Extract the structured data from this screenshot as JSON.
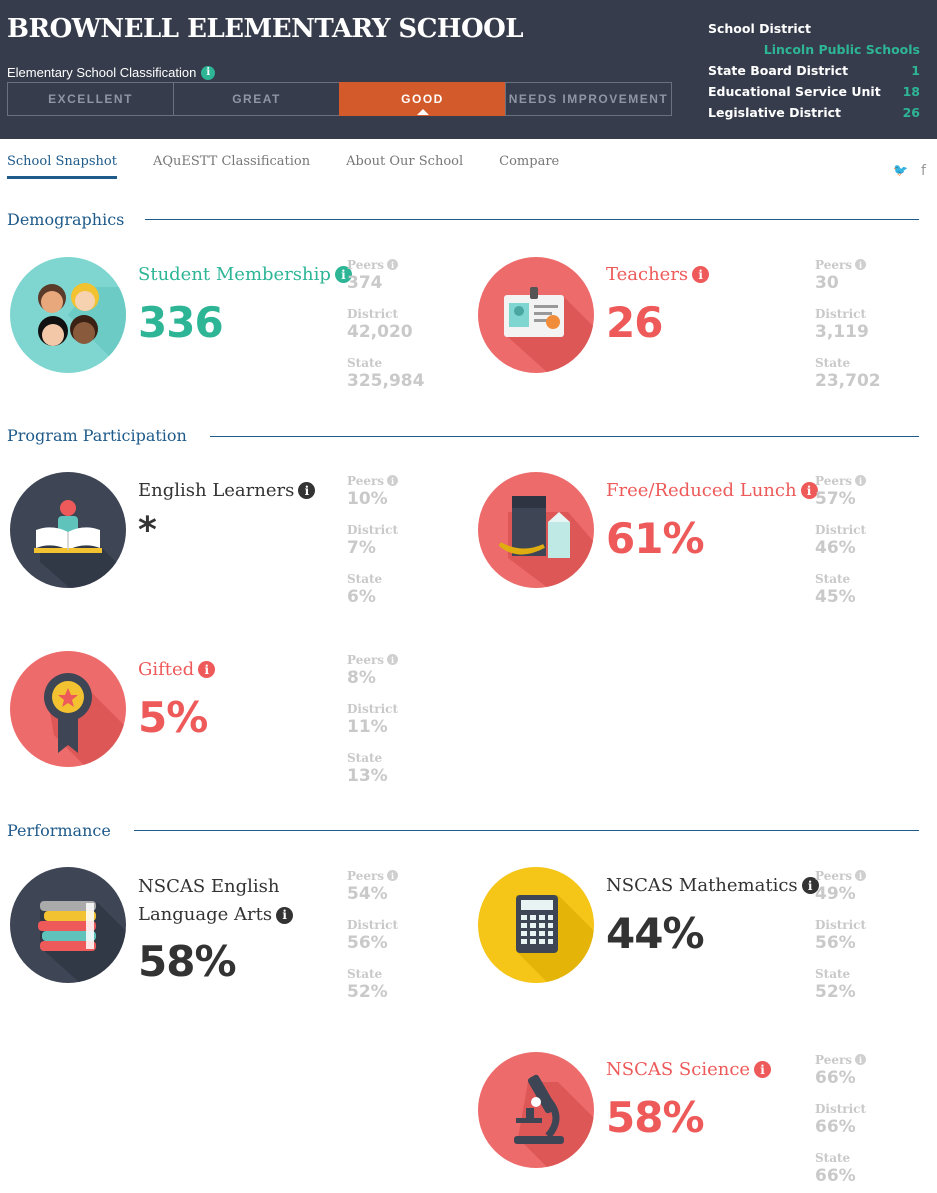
{
  "header": {
    "school_name": "BROWNELL ELEMENTARY SCHOOL",
    "classification_label": "Elementary School Classification",
    "ratings": [
      "EXCELLENT",
      "GREAT",
      "GOOD",
      "NEEDS IMPROVEMENT"
    ],
    "active_rating": "GOOD",
    "district_info": {
      "school_district_label": "School District",
      "school_district_value": "Lincoln Public Schools",
      "state_board_label": "State Board District",
      "state_board_value": "1",
      "esu_label": "Educational Service Unit",
      "esu_value": "18",
      "legislative_label": "Legislative District",
      "legislative_value": "26"
    }
  },
  "nav": {
    "tabs": [
      "School Snapshot",
      "AQuESTT Classification",
      "About Our School",
      "Compare"
    ],
    "active_tab": "School Snapshot",
    "twitter_glyph": "🐦",
    "facebook_glyph": "f"
  },
  "info_glyph": "i",
  "comparison_labels": {
    "peers": "Peers",
    "district": "District",
    "state": "State"
  },
  "sections": {
    "demographics": {
      "title": "Demographics",
      "student_membership": {
        "label": "Student Membership",
        "value": "336",
        "peers": "374",
        "district": "42,020",
        "state": "325,984"
      },
      "teachers": {
        "label": "Teachers",
        "value": "26",
        "peers": "30",
        "district": "3,119",
        "state": "23,702"
      }
    },
    "program_participation": {
      "title": "Program Participation",
      "english_learners": {
        "label": "English Learners",
        "value": "*",
        "peers": "10%",
        "district": "7%",
        "state": "6%"
      },
      "free_reduced_lunch": {
        "label": "Free/Reduced Lunch",
        "value": "61%",
        "peers": "57%",
        "district": "46%",
        "state": "45%"
      },
      "gifted": {
        "label": "Gifted",
        "value": "5%",
        "peers": "8%",
        "district": "11%",
        "state": "13%"
      }
    },
    "performance": {
      "title": "Performance",
      "nscas_ela": {
        "label_line1": "NSCAS English",
        "label_line2": "Language Arts",
        "value": "58%",
        "peers": "54%",
        "district": "56%",
        "state": "52%"
      },
      "nscas_math": {
        "label": "NSCAS Mathematics",
        "value": "44%",
        "peers": "49%",
        "district": "56%",
        "state": "52%"
      },
      "nscas_science": {
        "label": "NSCAS Science",
        "value": "58%",
        "peers": "66%",
        "district": "66%",
        "state": "66%"
      }
    }
  },
  "colors": {
    "header_bg": "#363c4b",
    "active_rating": "#d35a2a",
    "teal": "#2db596",
    "red": "#ee5a5a",
    "navy": "#1e5a8a",
    "muted": "#c9c9c9"
  },
  "icons": {
    "student_membership": "students-icon",
    "teachers": "id-badge-icon",
    "english_learners": "book-reader-icon",
    "free_reduced_lunch": "lunch-icon",
    "gifted": "award-ribbon-icon",
    "nscas_ela": "books-stack-icon",
    "nscas_math": "calculator-icon",
    "nscas_science": "microscope-icon"
  }
}
